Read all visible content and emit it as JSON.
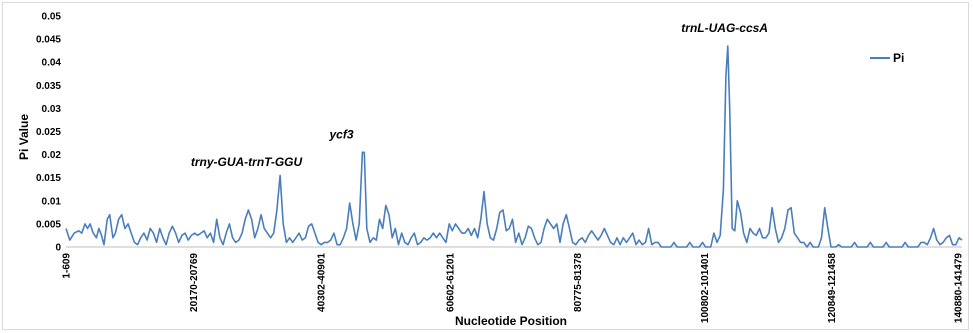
{
  "chart_data": {
    "type": "line",
    "title": "",
    "xlabel": "Nucleotide Position",
    "ylabel": "Pi Value",
    "ylim": [
      0,
      0.05
    ],
    "yticks": [
      "0",
      "0.005",
      "0.01",
      "0.015",
      "0.02",
      "0.025",
      "0.03",
      "0.035",
      "0.04",
      "0.045",
      "0.05"
    ],
    "xticks": [
      {
        "label": "1-609",
        "x": 0
      },
      {
        "label": "20170-20769",
        "x": 20170
      },
      {
        "label": "40302-40901",
        "x": 40302
      },
      {
        "label": "60602-61201",
        "x": 60602
      },
      {
        "label": "80775-81378",
        "x": 80775
      },
      {
        "label": "100802-101401",
        "x": 100802
      },
      {
        "label": "120849-121458",
        "x": 120849
      },
      {
        "label": "140880-141479",
        "x": 140880
      }
    ],
    "xlim": [
      0,
      141479
    ],
    "grid": false,
    "legend": {
      "position": "top-right",
      "entries": [
        "Pi"
      ]
    },
    "color": "#4a7ebb",
    "series": [
      {
        "name": "Pi",
        "points": [
          [
            0,
            0.004
          ],
          [
            600,
            0.0015
          ],
          [
            1300,
            0.003
          ],
          [
            2000,
            0.0035
          ],
          [
            2500,
            0.003
          ],
          [
            3000,
            0.005
          ],
          [
            3400,
            0.004
          ],
          [
            3800,
            0.005
          ],
          [
            4300,
            0.003
          ],
          [
            4800,
            0.002
          ],
          [
            5200,
            0.004
          ],
          [
            5600,
            0.0025
          ],
          [
            6000,
            0.0005
          ],
          [
            6500,
            0.006
          ],
          [
            6900,
            0.007
          ],
          [
            7400,
            0.002
          ],
          [
            7800,
            0.003
          ],
          [
            8300,
            0.006
          ],
          [
            8800,
            0.007
          ],
          [
            9300,
            0.004
          ],
          [
            9800,
            0.005
          ],
          [
            10300,
            0.003
          ],
          [
            10800,
            0.001
          ],
          [
            11300,
            0.0005
          ],
          [
            11800,
            0.002
          ],
          [
            12300,
            0.003
          ],
          [
            12800,
            0.0015
          ],
          [
            13300,
            0.004
          ],
          [
            13800,
            0.003
          ],
          [
            14300,
            0.001
          ],
          [
            14800,
            0.004
          ],
          [
            15300,
            0.002
          ],
          [
            15800,
            0.0005
          ],
          [
            16300,
            0.003
          ],
          [
            16800,
            0.0045
          ],
          [
            17300,
            0.003
          ],
          [
            17800,
            0.001
          ],
          [
            18300,
            0.0025
          ],
          [
            18800,
            0.003
          ],
          [
            19300,
            0.0015
          ],
          [
            19800,
            0.0025
          ],
          [
            20300,
            0.003
          ],
          [
            20800,
            0.0025
          ],
          [
            21300,
            0.003
          ],
          [
            21800,
            0.0035
          ],
          [
            22300,
            0.002
          ],
          [
            22800,
            0.003
          ],
          [
            23300,
            0.001
          ],
          [
            23800,
            0.006
          ],
          [
            24300,
            0.002
          ],
          [
            24800,
            0.0005
          ],
          [
            25300,
            0.003
          ],
          [
            25800,
            0.005
          ],
          [
            26300,
            0.002
          ],
          [
            26800,
            0.001
          ],
          [
            27300,
            0.0015
          ],
          [
            27800,
            0.003
          ],
          [
            28300,
            0.006
          ],
          [
            28800,
            0.008
          ],
          [
            29300,
            0.006
          ],
          [
            29800,
            0.002
          ],
          [
            30300,
            0.004
          ],
          [
            30800,
            0.007
          ],
          [
            31300,
            0.004
          ],
          [
            31800,
            0.003
          ],
          [
            32300,
            0.002
          ],
          [
            32800,
            0.003
          ],
          [
            33300,
            0.008
          ],
          [
            33800,
            0.0155
          ],
          [
            34300,
            0.005
          ],
          [
            34800,
            0.001
          ],
          [
            35300,
            0.002
          ],
          [
            35800,
            0.001
          ],
          [
            36300,
            0.002
          ],
          [
            36800,
            0.003
          ],
          [
            37300,
            0.0015
          ],
          [
            37800,
            0.002
          ],
          [
            38300,
            0.0045
          ],
          [
            38800,
            0.005
          ],
          [
            39300,
            0.003
          ],
          [
            39800,
            0.001
          ],
          [
            40300,
            0.0005
          ],
          [
            40800,
            0.001
          ],
          [
            41300,
            0.001
          ],
          [
            41800,
            0.0015
          ],
          [
            42300,
            0.003
          ],
          [
            42800,
            0.0005
          ],
          [
            43300,
            0.0005
          ],
          [
            43800,
            0.002
          ],
          [
            44300,
            0.004
          ],
          [
            44800,
            0.0095
          ],
          [
            45300,
            0.005
          ],
          [
            45800,
            0.0015
          ],
          [
            46300,
            0.005
          ],
          [
            46800,
            0.0205
          ],
          [
            47100,
            0.0205
          ],
          [
            47500,
            0.004
          ],
          [
            48000,
            0.001
          ],
          [
            48500,
            0.002
          ],
          [
            49000,
            0.0015
          ],
          [
            49500,
            0.006
          ],
          [
            50000,
            0.004
          ],
          [
            50500,
            0.009
          ],
          [
            51000,
            0.007
          ],
          [
            51500,
            0.002
          ],
          [
            52000,
            0.004
          ],
          [
            52500,
            0.0005
          ],
          [
            53000,
            0.003
          ],
          [
            53500,
            0.001
          ],
          [
            54000,
            0.0005
          ],
          [
            54500,
            0.002
          ],
          [
            55000,
            0.003
          ],
          [
            55500,
            0.0005
          ],
          [
            56000,
            0.001
          ],
          [
            56500,
            0.002
          ],
          [
            57000,
            0.0015
          ],
          [
            57500,
            0.002
          ],
          [
            58000,
            0.003
          ],
          [
            58500,
            0.002
          ],
          [
            59000,
            0.003
          ],
          [
            59500,
            0.002
          ],
          [
            60000,
            0.001
          ],
          [
            60500,
            0.005
          ],
          [
            61000,
            0.0035
          ],
          [
            61500,
            0.005
          ],
          [
            62000,
            0.004
          ],
          [
            62500,
            0.003
          ],
          [
            63000,
            0.003
          ],
          [
            63500,
            0.004
          ],
          [
            64000,
            0.0025
          ],
          [
            64500,
            0.004
          ],
          [
            65000,
            0.002
          ],
          [
            65500,
            0.006
          ],
          [
            66000,
            0.012
          ],
          [
            66500,
            0.005
          ],
          [
            67000,
            0.002
          ],
          [
            67500,
            0.0015
          ],
          [
            68000,
            0.004
          ],
          [
            68500,
            0.0075
          ],
          [
            69000,
            0.008
          ],
          [
            69500,
            0.0035
          ],
          [
            70000,
            0.004
          ],
          [
            70500,
            0.006
          ],
          [
            71000,
            0.001
          ],
          [
            71500,
            0.003
          ],
          [
            72000,
            0.0005
          ],
          [
            72500,
            0.002
          ],
          [
            73000,
            0.0045
          ],
          [
            73500,
            0.004
          ],
          [
            74000,
            0.002
          ],
          [
            74500,
            0.0005
          ],
          [
            75000,
            0.001
          ],
          [
            75500,
            0.004
          ],
          [
            76000,
            0.006
          ],
          [
            76500,
            0.005
          ],
          [
            77000,
            0.004
          ],
          [
            77500,
            0.005
          ],
          [
            78000,
            0.001
          ],
          [
            78500,
            0.005
          ],
          [
            79000,
            0.007
          ],
          [
            79500,
            0.004
          ],
          [
            80000,
            0.001
          ],
          [
            80500,
            0.0005
          ],
          [
            81000,
            0.0015
          ],
          [
            81500,
            0.002
          ],
          [
            82000,
            0.001
          ],
          [
            82500,
            0.0025
          ],
          [
            83000,
            0.0035
          ],
          [
            83500,
            0.0025
          ],
          [
            84000,
            0.0015
          ],
          [
            84500,
            0.0025
          ],
          [
            85000,
            0.004
          ],
          [
            85500,
            0.0025
          ],
          [
            86000,
            0.001
          ],
          [
            86500,
            0.0005
          ],
          [
            87000,
            0.002
          ],
          [
            87500,
            0.0005
          ],
          [
            88000,
            0.002
          ],
          [
            88500,
            0.001
          ],
          [
            89000,
            0.002
          ],
          [
            89500,
            0.003
          ],
          [
            90000,
            0.0005
          ],
          [
            90500,
            0.0015
          ],
          [
            91000,
            0.0005
          ],
          [
            91500,
            0.001
          ],
          [
            92000,
            0.004
          ],
          [
            92500,
            0.0005
          ],
          [
            93000,
            0.001
          ],
          [
            93500,
            0.001
          ],
          [
            94000,
            0.0
          ],
          [
            95500,
            0.0
          ],
          [
            96000,
            0.001
          ],
          [
            96500,
            0.0
          ],
          [
            98000,
            0.0
          ],
          [
            98500,
            0.001
          ],
          [
            99000,
            0.0
          ],
          [
            100000,
            0.0
          ],
          [
            100500,
            0.001
          ],
          [
            101000,
            0.0
          ],
          [
            101800,
            0.0
          ],
          [
            102300,
            0.003
          ],
          [
            102800,
            0.001
          ],
          [
            103300,
            0.0025
          ],
          [
            103800,
            0.0125
          ],
          [
            104200,
            0.037
          ],
          [
            104500,
            0.0435
          ],
          [
            104800,
            0.03
          ],
          [
            105200,
            0.004
          ],
          [
            105600,
            0.0035
          ],
          [
            106000,
            0.01
          ],
          [
            106500,
            0.0075
          ],
          [
            107000,
            0.003
          ],
          [
            107500,
            0.001
          ],
          [
            108000,
            0.004
          ],
          [
            108500,
            0.003
          ],
          [
            109000,
            0.0025
          ],
          [
            109500,
            0.004
          ],
          [
            110000,
            0.002
          ],
          [
            110500,
            0.002
          ],
          [
            111000,
            0.003
          ],
          [
            111500,
            0.0085
          ],
          [
            112000,
            0.004
          ],
          [
            112500,
            0.001
          ],
          [
            113000,
            0.002
          ],
          [
            113500,
            0.004
          ],
          [
            114000,
            0.008
          ],
          [
            114500,
            0.0085
          ],
          [
            115000,
            0.003
          ],
          [
            115500,
            0.002
          ],
          [
            116000,
            0.001
          ],
          [
            116500,
            0.001
          ],
          [
            117000,
            0.0
          ],
          [
            117500,
            0.001
          ],
          [
            118000,
            0.0
          ],
          [
            118800,
            0.0
          ],
          [
            119300,
            0.002
          ],
          [
            119800,
            0.0085
          ],
          [
            120300,
            0.004
          ],
          [
            120800,
            0.0
          ],
          [
            121500,
            0.0
          ],
          [
            122000,
            0.0005
          ],
          [
            122500,
            0.0
          ],
          [
            124000,
            0.0
          ],
          [
            124500,
            0.001
          ],
          [
            125000,
            0.0
          ],
          [
            126500,
            0.0
          ],
          [
            127000,
            0.001
          ],
          [
            127500,
            0.0
          ],
          [
            129000,
            0.0
          ],
          [
            129500,
            0.001
          ],
          [
            130000,
            0.0
          ],
          [
            132000,
            0.0
          ],
          [
            132500,
            0.001
          ],
          [
            133000,
            0.0
          ],
          [
            134500,
            0.0
          ],
          [
            135000,
            0.001
          ],
          [
            135500,
            0.001
          ],
          [
            136000,
            0.0005
          ],
          [
            136500,
            0.002
          ],
          [
            137000,
            0.004
          ],
          [
            137500,
            0.0015
          ],
          [
            138000,
            0.0005
          ],
          [
            138500,
            0.001
          ],
          [
            139000,
            0.002
          ],
          [
            139500,
            0.0025
          ],
          [
            140000,
            0.0005
          ],
          [
            140500,
            0.0005
          ],
          [
            141000,
            0.002
          ],
          [
            141479,
            0.0015
          ]
        ]
      }
    ],
    "annotations": [
      {
        "text": "trny-GUA-trnT-GGU",
        "x": 28500,
        "y": 0.0175
      },
      {
        "text": "ycf3",
        "x": 43500,
        "y": 0.0235
      },
      {
        "text": "trnL-UAG-ccsA",
        "x": 104000,
        "y": 0.0465
      }
    ]
  }
}
